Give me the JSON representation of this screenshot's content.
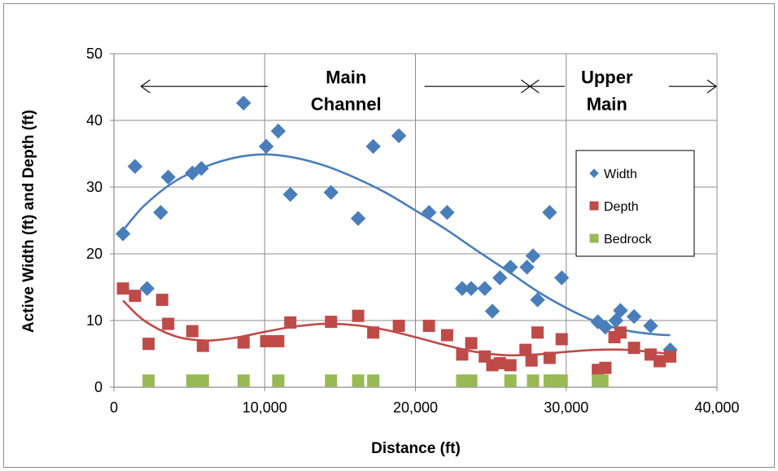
{
  "chart_data": {
    "type": "scatter",
    "xlabel": "Distance (ft)",
    "ylabel": "Active Width (ft) and Depth (ft)",
    "xlim": [
      0,
      40000
    ],
    "ylim": [
      0,
      50
    ],
    "x_ticks": [
      0,
      10000,
      20000,
      30000,
      40000
    ],
    "x_tick_labels": [
      "0",
      "10,000",
      "20,000",
      "30,000",
      "40,000"
    ],
    "y_ticks": [
      0,
      10,
      20,
      30,
      40,
      50
    ],
    "y_tick_labels": [
      "0",
      "10",
      "20",
      "30",
      "40",
      "50"
    ],
    "grid": true,
    "legend_position": "right",
    "annotations": [
      {
        "text_lines": [
          "Main",
          "Channel"
        ],
        "x_center": 15400,
        "y_lines": [
          46.5,
          42.5
        ]
      },
      {
        "text_lines": [
          "Upper",
          "Main"
        ],
        "x_center": 32700,
        "y_lines": [
          46.5,
          42.5
        ]
      }
    ],
    "ranges": [
      {
        "label": "Main Channel",
        "x_start": 1800,
        "x_end": 27600
      },
      {
        "label": "Upper Main",
        "x_start": 27600,
        "x_end": 40000
      }
    ],
    "series": [
      {
        "name": "Width",
        "marker": "diamond",
        "color": "#4A7EBB",
        "points": [
          [
            600,
            23.0
          ],
          [
            1400,
            33.1
          ],
          [
            2200,
            14.8
          ],
          [
            3100,
            26.2
          ],
          [
            3600,
            31.5
          ],
          [
            5200,
            32.1
          ],
          [
            5800,
            32.8
          ],
          [
            8600,
            42.6
          ],
          [
            10100,
            36.1
          ],
          [
            10900,
            38.4
          ],
          [
            11700,
            28.9
          ],
          [
            14400,
            29.2
          ],
          [
            16200,
            25.3
          ],
          [
            17200,
            36.1
          ],
          [
            18900,
            37.7
          ],
          [
            20900,
            26.2
          ],
          [
            22100,
            26.2
          ],
          [
            23100,
            14.8
          ],
          [
            23700,
            14.8
          ],
          [
            24600,
            14.8
          ],
          [
            25100,
            11.4
          ],
          [
            25600,
            16.4
          ],
          [
            26300,
            18.0
          ],
          [
            27400,
            18.0
          ],
          [
            27800,
            19.7
          ],
          [
            28100,
            13.1
          ],
          [
            28900,
            26.2
          ],
          [
            29700,
            16.4
          ],
          [
            32100,
            9.8
          ],
          [
            32600,
            9.0
          ],
          [
            33300,
            10.0
          ],
          [
            33600,
            11.5
          ],
          [
            34500,
            10.6
          ],
          [
            35600,
            9.2
          ],
          [
            36900,
            5.6
          ]
        ]
      },
      {
        "name": "Depth",
        "marker": "square",
        "color": "#BE4B48",
        "points": [
          [
            600,
            14.8
          ],
          [
            1400,
            13.7
          ],
          [
            2300,
            6.5
          ],
          [
            3200,
            13.1
          ],
          [
            3600,
            9.5
          ],
          [
            5200,
            8.4
          ],
          [
            5900,
            6.2
          ],
          [
            8600,
            6.7
          ],
          [
            10100,
            6.9
          ],
          [
            10900,
            6.9
          ],
          [
            11700,
            9.7
          ],
          [
            14400,
            9.8
          ],
          [
            16200,
            10.7
          ],
          [
            17200,
            8.2
          ],
          [
            18900,
            9.2
          ],
          [
            20900,
            9.2
          ],
          [
            22100,
            7.8
          ],
          [
            23100,
            4.9
          ],
          [
            23700,
            6.6
          ],
          [
            24600,
            4.6
          ],
          [
            25100,
            3.3
          ],
          [
            25600,
            3.6
          ],
          [
            26300,
            3.3
          ],
          [
            27300,
            5.6
          ],
          [
            27700,
            4.0
          ],
          [
            28100,
            8.2
          ],
          [
            28900,
            4.4
          ],
          [
            29700,
            7.2
          ],
          [
            32100,
            2.6
          ],
          [
            32600,
            2.9
          ],
          [
            33200,
            7.5
          ],
          [
            33600,
            8.2
          ],
          [
            34500,
            5.9
          ],
          [
            35600,
            4.9
          ],
          [
            36200,
            3.9
          ],
          [
            36900,
            4.6
          ]
        ]
      },
      {
        "name": "Bedrock",
        "marker": "square",
        "color": "#98B954",
        "points": [
          [
            2300,
            1
          ],
          [
            5200,
            1
          ],
          [
            5900,
            1
          ],
          [
            8600,
            1
          ],
          [
            10900,
            1
          ],
          [
            14400,
            1
          ],
          [
            16200,
            1
          ],
          [
            17200,
            1
          ],
          [
            23100,
            1
          ],
          [
            23700,
            1
          ],
          [
            26300,
            1
          ],
          [
            27800,
            1
          ],
          [
            28900,
            1
          ],
          [
            29200,
            1
          ],
          [
            29700,
            1
          ],
          [
            32100,
            1
          ],
          [
            32400,
            1
          ]
        ]
      }
    ],
    "trendlines": [
      {
        "series": "Width",
        "color": "#4A7EBB",
        "points": [
          [
            600,
            23.5
          ],
          [
            2000,
            27.2
          ],
          [
            4000,
            30.8
          ],
          [
            6000,
            33.0
          ],
          [
            8000,
            34.4
          ],
          [
            10000,
            34.9
          ],
          [
            12000,
            34.4
          ],
          [
            14000,
            33.2
          ],
          [
            16000,
            31.4
          ],
          [
            18000,
            29.2
          ],
          [
            20000,
            26.5
          ],
          [
            22000,
            23.7
          ],
          [
            24000,
            20.6
          ],
          [
            26000,
            17.6
          ],
          [
            28000,
            14.5
          ],
          [
            30000,
            11.9
          ],
          [
            32000,
            9.8
          ],
          [
            34000,
            8.5
          ],
          [
            36000,
            7.9
          ],
          [
            36900,
            7.8
          ]
        ]
      },
      {
        "series": "Depth",
        "color": "#BE4B48",
        "points": [
          [
            600,
            13.0
          ],
          [
            2000,
            10.0
          ],
          [
            4000,
            7.7
          ],
          [
            6000,
            7.0
          ],
          [
            8000,
            7.4
          ],
          [
            10000,
            8.3
          ],
          [
            12000,
            9.1
          ],
          [
            14000,
            9.5
          ],
          [
            16000,
            9.3
          ],
          [
            18000,
            8.6
          ],
          [
            20000,
            7.5
          ],
          [
            22000,
            6.3
          ],
          [
            24000,
            5.3
          ],
          [
            26000,
            4.8
          ],
          [
            28000,
            4.9
          ],
          [
            30000,
            5.3
          ],
          [
            32000,
            5.6
          ],
          [
            34000,
            5.6
          ],
          [
            36000,
            5.2
          ],
          [
            36900,
            5.0
          ]
        ]
      }
    ]
  }
}
